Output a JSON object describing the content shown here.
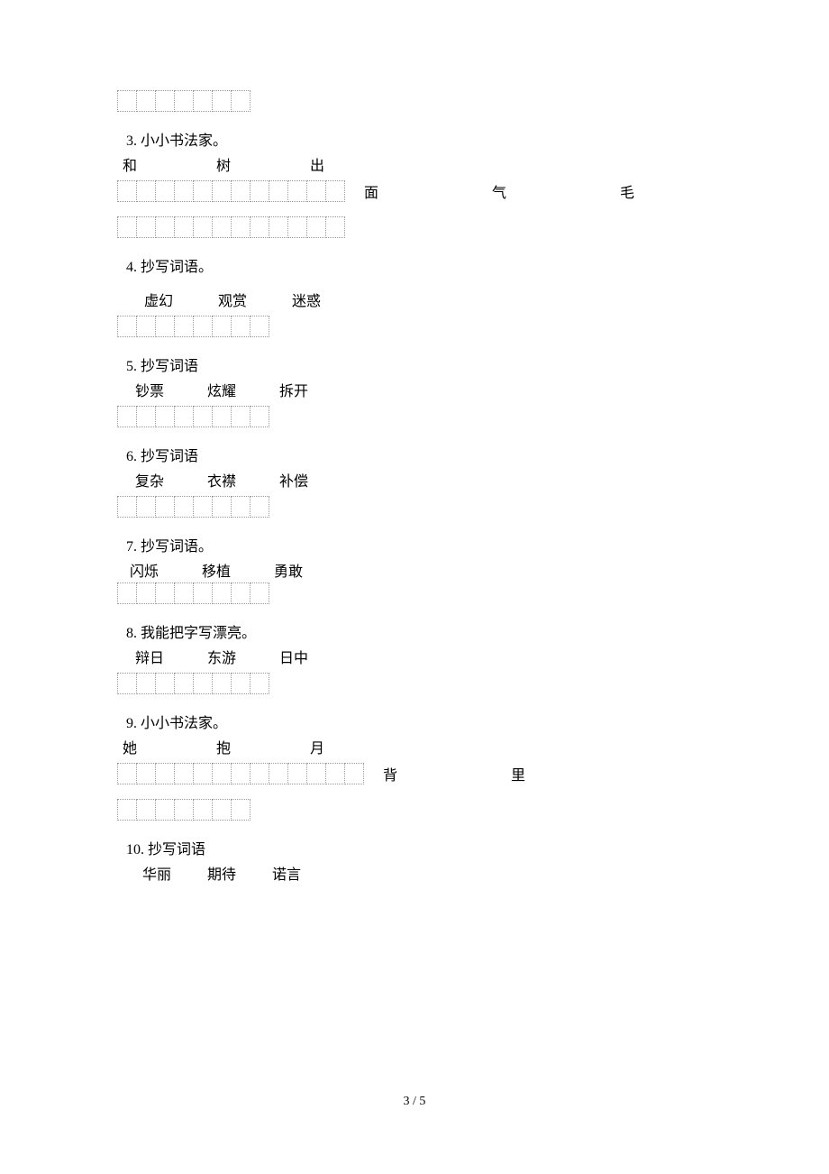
{
  "items": [
    {
      "title": "",
      "rows": [
        {
          "boxes": 7,
          "extra": []
        }
      ]
    },
    {
      "title": "3. 小小书法家。",
      "words": [
        "和",
        "树",
        "出"
      ],
      "words_indent": 6,
      "word_gap": 88,
      "rows": [
        {
          "boxes": 12,
          "extra": [
            "面",
            "气",
            "毛"
          ],
          "extra_gap": 126
        },
        {
          "boxes": 12,
          "extra": []
        }
      ]
    },
    {
      "title": "4. 抄写词语。",
      "words": [
        "虚幻",
        "观赏",
        "迷惑"
      ],
      "words_indent": 30,
      "word_gap": 50,
      "words_margin_top": 14,
      "rows": [
        {
          "boxes": 8,
          "extra": []
        }
      ]
    },
    {
      "title": "5. 抄写词语",
      "words": [
        "钞票",
        "炫耀",
        "拆开"
      ],
      "words_indent": 20,
      "word_gap": 48,
      "rows": [
        {
          "boxes": 8,
          "extra": []
        }
      ]
    },
    {
      "title": "6. 抄写词语",
      "words": [
        "复杂",
        "衣襟",
        "补偿"
      ],
      "words_indent": 20,
      "word_gap": 48,
      "rows": [
        {
          "boxes": 8,
          "extra": []
        }
      ]
    },
    {
      "title": "7. 抄写词语。",
      "words": [
        "闪烁",
        "移植",
        "勇敢"
      ],
      "words_indent": 14,
      "word_gap": 48,
      "tight": true,
      "rows": [
        {
          "boxes": 8,
          "extra": []
        }
      ]
    },
    {
      "title": "8. 我能把字写漂亮。",
      "words": [
        "辩日",
        "东游",
        "日中"
      ],
      "words_indent": 20,
      "word_gap": 48,
      "rows": [
        {
          "boxes": 8,
          "extra": []
        }
      ]
    },
    {
      "title": "9. 小小书法家。",
      "words": [
        "她",
        "抱",
        "月"
      ],
      "words_indent": 6,
      "word_gap": 88,
      "rows": [
        {
          "boxes": 13,
          "extra": [
            "背",
            "里"
          ],
          "extra_gap": 126
        },
        {
          "boxes": 7,
          "extra": []
        }
      ]
    },
    {
      "title": "10. 抄写词语",
      "words": [
        "华丽",
        "期待",
        "诺言"
      ],
      "words_indent": 28,
      "word_gap": 40,
      "rows": []
    }
  ],
  "page_number": "3 / 5"
}
